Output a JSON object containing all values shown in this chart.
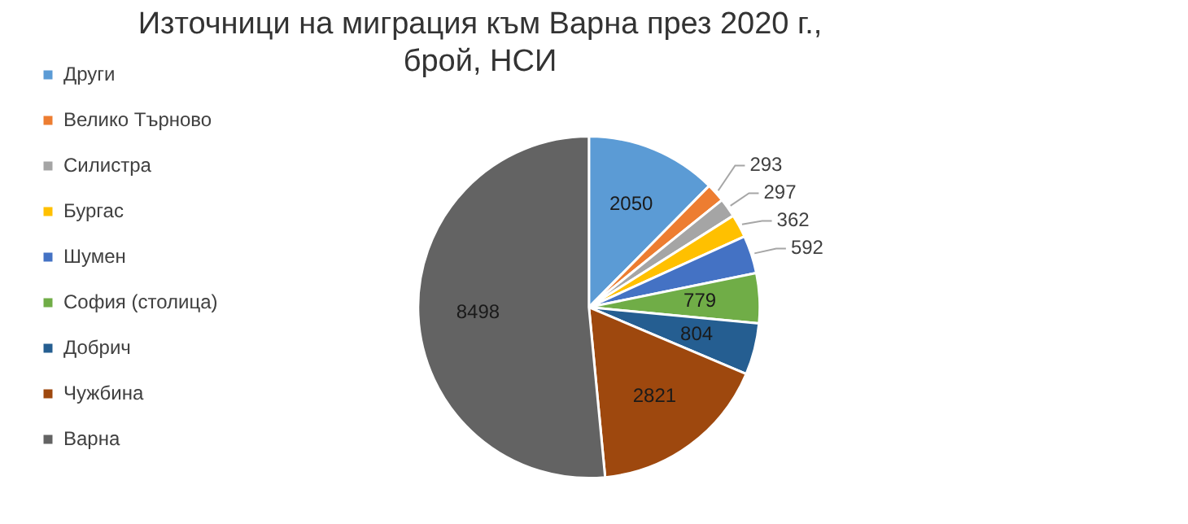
{
  "chart_data": {
    "type": "pie",
    "title": "Източници на миграция към Варна през 2020 г., брой, НСИ",
    "categories": [
      "Други",
      "Велико Търново",
      "Силистра",
      "Бургас",
      "Шумен",
      "София (столица)",
      "Добрич",
      "Чужбина",
      "Варна"
    ],
    "values": [
      2050,
      293,
      297,
      362,
      592,
      779,
      804,
      2821,
      8498
    ],
    "colors": [
      "#5b9bd5",
      "#ed7d31",
      "#a5a5a5",
      "#ffc000",
      "#4472c4",
      "#70ad47",
      "#255e91",
      "#9e480e",
      "#636363"
    ],
    "legend": "left",
    "data_labels": true
  }
}
